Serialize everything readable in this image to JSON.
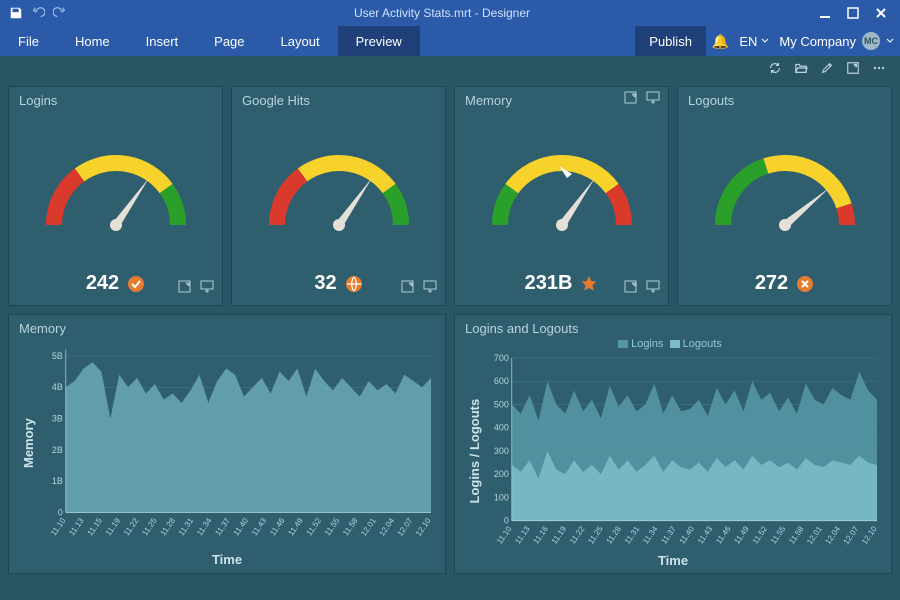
{
  "titlebar": {
    "title": "User Activity Stats.mrt - Designer"
  },
  "menubar": {
    "items": [
      {
        "label": "File",
        "active": false
      },
      {
        "label": "Home",
        "active": false
      },
      {
        "label": "Insert",
        "active": false
      },
      {
        "label": "Page",
        "active": false
      },
      {
        "label": "Layout",
        "active": false
      },
      {
        "label": "Preview",
        "active": true
      }
    ],
    "publish_label": "Publish",
    "language": "EN",
    "company": "My Company",
    "avatar_initials": "MC"
  },
  "colors": {
    "app_bg": "#2a5565",
    "panel_bg": "#2f5f6f",
    "panel_border": "#1f4652",
    "titlebar_bg": "#2a5aa8",
    "text_light": "#cde3e9",
    "accent_orange": "#e67b2f"
  },
  "gauges": [
    {
      "title": "Logins",
      "value_text": "242",
      "icon": "check-circle",
      "icon_color": "#e67b2f",
      "segments": [
        {
          "start": -180,
          "end": -126,
          "color": "#d93a2b"
        },
        {
          "start": -126,
          "end": -36,
          "color": "#f6d22b"
        },
        {
          "start": -36,
          "end": 0,
          "color": "#2aa02a"
        }
      ],
      "needle_angle": -55,
      "show_top_actions": false,
      "show_bottom_actions": true
    },
    {
      "title": "Google Hits",
      "value_text": "32",
      "icon": "globe",
      "icon_color": "#e67b2f",
      "segments": [
        {
          "start": -180,
          "end": -126,
          "color": "#d93a2b"
        },
        {
          "start": -126,
          "end": -36,
          "color": "#f6d22b"
        },
        {
          "start": -36,
          "end": 0,
          "color": "#2aa02a"
        }
      ],
      "needle_angle": -55,
      "show_top_actions": false,
      "show_bottom_actions": true
    },
    {
      "title": "Memory",
      "value_text": "231B",
      "icon": "star",
      "icon_color": "#e67b2f",
      "segments": [
        {
          "start": -180,
          "end": -144,
          "color": "#2aa02a"
        },
        {
          "start": -144,
          "end": -36,
          "color": "#f6d22b"
        },
        {
          "start": -36,
          "end": 0,
          "color": "#d93a2b"
        }
      ],
      "needle_angle": -55,
      "show_top_actions": true,
      "show_bottom_actions": true,
      "cursor_at_top": true
    },
    {
      "title": "Logouts",
      "value_text": "272",
      "icon": "x-circle",
      "icon_color": "#e67b2f",
      "segments": [
        {
          "start": -180,
          "end": -108,
          "color": "#2aa02a"
        },
        {
          "start": -108,
          "end": -18,
          "color": "#f6d22b"
        },
        {
          "start": -18,
          "end": 0,
          "color": "#d93a2b"
        }
      ],
      "needle_angle": -40,
      "show_top_actions": false,
      "show_bottom_actions": false
    }
  ],
  "memory_chart": {
    "title": "Memory",
    "y_label": "Memory",
    "x_label": "Time",
    "y_min": 0,
    "y_max": 5.2,
    "y_ticks": [
      {
        "v": 0,
        "label": "0"
      },
      {
        "v": 1,
        "label": "1B"
      },
      {
        "v": 2,
        "label": "2B"
      },
      {
        "v": 3,
        "label": "3B"
      },
      {
        "v": 4,
        "label": "4B"
      },
      {
        "v": 5,
        "label": "5B"
      }
    ],
    "x_labels": [
      "11.10",
      "11.13",
      "11.15",
      "11.19",
      "11.22",
      "11.25",
      "11.28",
      "11.31",
      "11.34",
      "11.37",
      "11.40",
      "11.43",
      "11.46",
      "11.49",
      "11.52",
      "11.55",
      "11.58",
      "12.01",
      "12.04",
      "12.07",
      "12.10"
    ],
    "series": [
      4.0,
      4.2,
      4.6,
      4.8,
      4.5,
      3.0,
      4.4,
      4.0,
      4.3,
      3.8,
      4.1,
      3.6,
      3.8,
      3.5,
      3.9,
      4.4,
      3.5,
      4.2,
      4.6,
      4.4,
      3.7,
      4.0,
      4.3,
      3.8,
      4.5,
      4.2,
      4.6,
      3.7,
      4.6,
      4.2,
      3.9,
      4.3,
      4.0,
      3.7,
      4.2,
      3.9,
      4.1,
      3.8,
      4.4,
      4.2,
      4.0,
      4.3
    ],
    "fill_color": "#6aa9b5",
    "fill_opacity": 0.85,
    "grid_color": "#4a7a88",
    "axis_text_color": "#b8d4dc"
  },
  "logins_chart": {
    "title": "Logins and Logouts",
    "y_label": "Logins / Logouts",
    "x_label": "Time",
    "y_min": 0,
    "y_max": 700,
    "y_ticks": [
      {
        "v": 0,
        "label": "0"
      },
      {
        "v": 100,
        "label": "100"
      },
      {
        "v": 200,
        "label": "200"
      },
      {
        "v": 300,
        "label": "300"
      },
      {
        "v": 400,
        "label": "400"
      },
      {
        "v": 500,
        "label": "500"
      },
      {
        "v": 600,
        "label": "600"
      },
      {
        "v": 700,
        "label": "700"
      }
    ],
    "x_labels": [
      "11.10",
      "11.13",
      "11.16",
      "11.19",
      "11.22",
      "11.25",
      "11.28",
      "11.31",
      "11.34",
      "11.37",
      "11.40",
      "11.43",
      "11.46",
      "11.49",
      "11.52",
      "11.55",
      "11.58",
      "12.01",
      "12.04",
      "12.07",
      "12.10"
    ],
    "legend": [
      {
        "label": "Logins",
        "color": "#5596a3"
      },
      {
        "label": "Logouts",
        "color": "#7bbac6"
      }
    ],
    "stack_lower": [
      240,
      210,
      260,
      180,
      300,
      220,
      200,
      260,
      210,
      240,
      200,
      280,
      220,
      260,
      210,
      240,
      280,
      210,
      260,
      230,
      220,
      250,
      210,
      270,
      230,
      260,
      220,
      280,
      240,
      260,
      230,
      250,
      220,
      270,
      240,
      230,
      260,
      250,
      240,
      280,
      250,
      240
    ],
    "stack_upper": [
      500,
      460,
      540,
      430,
      600,
      500,
      460,
      560,
      470,
      520,
      440,
      580,
      490,
      540,
      470,
      500,
      590,
      460,
      540,
      470,
      480,
      520,
      450,
      570,
      500,
      560,
      470,
      600,
      520,
      550,
      470,
      530,
      460,
      590,
      520,
      500,
      570,
      540,
      520,
      640,
      560,
      520
    ],
    "lower_color": "#7bbac6",
    "upper_color": "#5596a3",
    "fill_opacity": 0.9,
    "grid_color": "#4a7a88",
    "axis_text_color": "#b8d4dc"
  }
}
